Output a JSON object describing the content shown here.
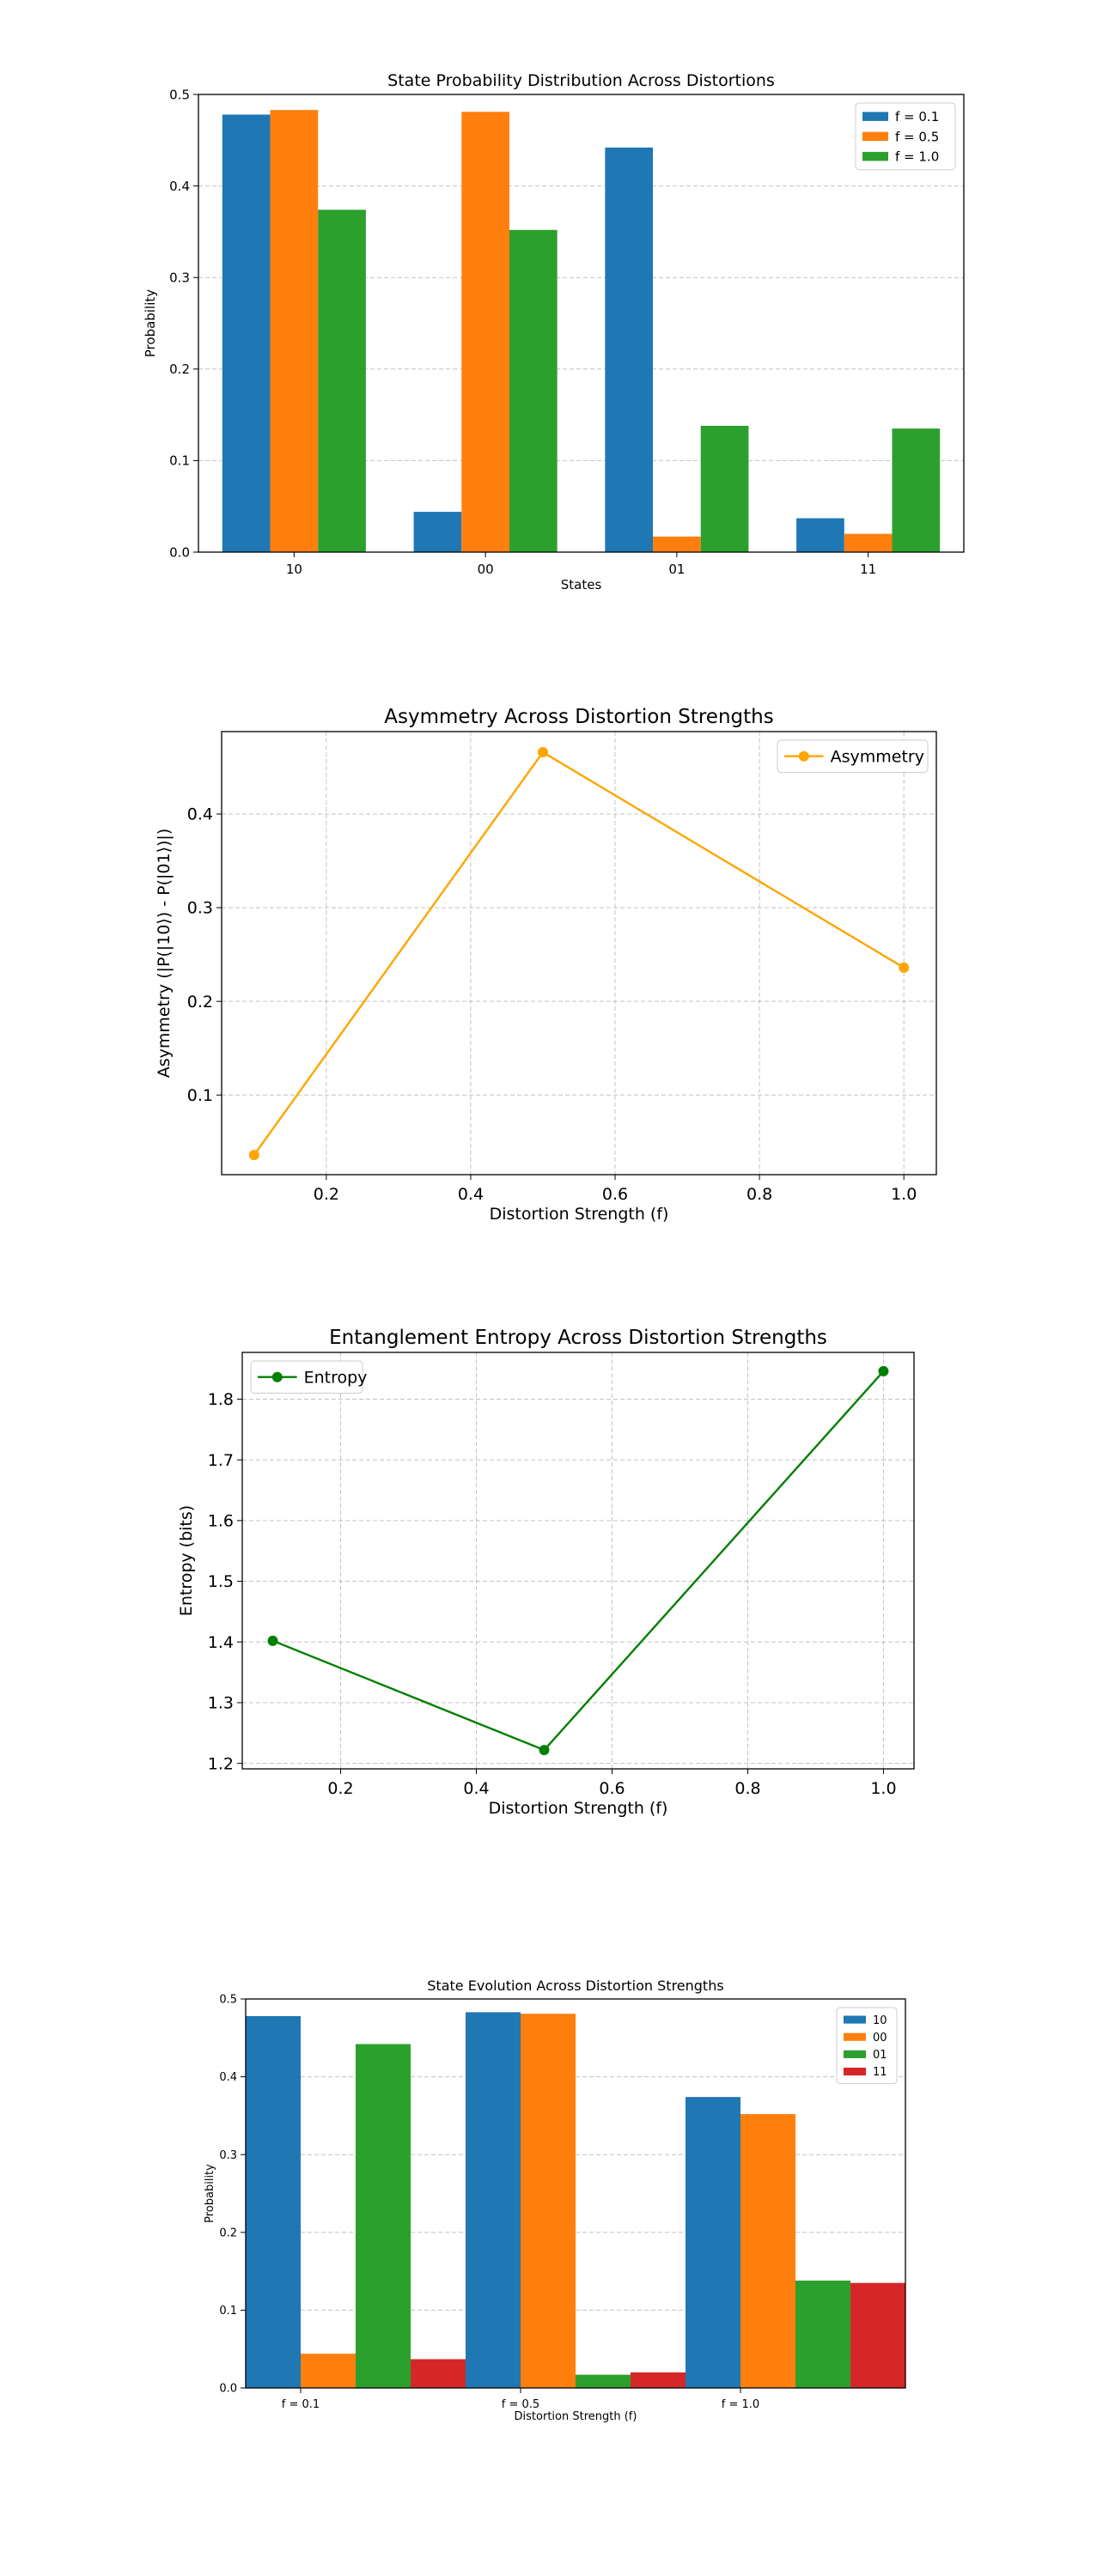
{
  "chart_data": [
    {
      "type": "bar",
      "title": "State Probability Distribution Across Distortions",
      "xlabel": "States",
      "ylabel": "Probability",
      "categories": [
        "10",
        "00",
        "01",
        "11"
      ],
      "series": [
        {
          "name": "f = 0.1",
          "values": [
            0.478,
            0.044,
            0.442,
            0.037
          ]
        },
        {
          "name": "f = 0.5",
          "values": [
            0.483,
            0.481,
            0.017,
            0.02
          ]
        },
        {
          "name": "f = 1.0",
          "values": [
            0.374,
            0.352,
            0.138,
            0.135
          ]
        }
      ],
      "yticks": [
        "0.0",
        "0.1",
        "0.2",
        "0.3",
        "0.4",
        "0.5"
      ],
      "ylim": [
        0,
        0.5
      ],
      "grid": "y",
      "legend": "top-right",
      "colors": [
        "#1f77b4",
        "#ff7f0e",
        "#2ca02c"
      ]
    },
    {
      "type": "line",
      "title": "Asymmetry Across Distortion Strengths",
      "xlabel": "Distortion Strength (f)",
      "ylabel": "Asymmetry (|P(|10⟩) - P(|01⟩)|)",
      "x": [
        0.1,
        0.5,
        1.0
      ],
      "series": [
        {
          "name": "Asymmetry",
          "values": [
            0.036,
            0.466,
            0.236
          ]
        }
      ],
      "xticks": [
        "0.2",
        "0.4",
        "0.6",
        "0.8",
        "1.0"
      ],
      "yticks": [
        "0.1",
        "0.2",
        "0.3",
        "0.4"
      ],
      "grid": "both",
      "legend": "top-right",
      "colors": [
        "#ffa500"
      ]
    },
    {
      "type": "line",
      "title": "Entanglement Entropy Across Distortion Strengths",
      "xlabel": "Distortion Strength (f)",
      "ylabel": "Entropy (bits)",
      "x": [
        0.1,
        0.5,
        1.0
      ],
      "series": [
        {
          "name": "Entropy",
          "values": [
            1.402,
            1.222,
            1.846
          ]
        }
      ],
      "xticks": [
        "0.2",
        "0.4",
        "0.6",
        "0.8",
        "1.0"
      ],
      "yticks": [
        "1.2",
        "1.3",
        "1.4",
        "1.5",
        "1.6",
        "1.7",
        "1.8"
      ],
      "grid": "both",
      "legend": "top-left",
      "colors": [
        "#008000"
      ]
    },
    {
      "type": "bar",
      "title": "State Evolution Across Distortion Strengths",
      "xlabel": "Distortion Strength (f)",
      "ylabel": "Probability",
      "categories": [
        "f = 0.1",
        "f = 0.5",
        "f = 1.0"
      ],
      "series": [
        {
          "name": "10",
          "values": [
            0.478,
            0.483,
            0.374
          ]
        },
        {
          "name": "00",
          "values": [
            0.044,
            0.481,
            0.352
          ]
        },
        {
          "name": "01",
          "values": [
            0.442,
            0.017,
            0.138
          ]
        },
        {
          "name": "11",
          "values": [
            0.037,
            0.02,
            0.135
          ]
        }
      ],
      "yticks": [
        "0.0",
        "0.1",
        "0.2",
        "0.3",
        "0.4",
        "0.5"
      ],
      "ylim": [
        0,
        0.5
      ],
      "grid": "y",
      "legend": "top-right",
      "colors": [
        "#1f77b4",
        "#ff7f0e",
        "#2ca02c",
        "#d62728"
      ]
    }
  ]
}
